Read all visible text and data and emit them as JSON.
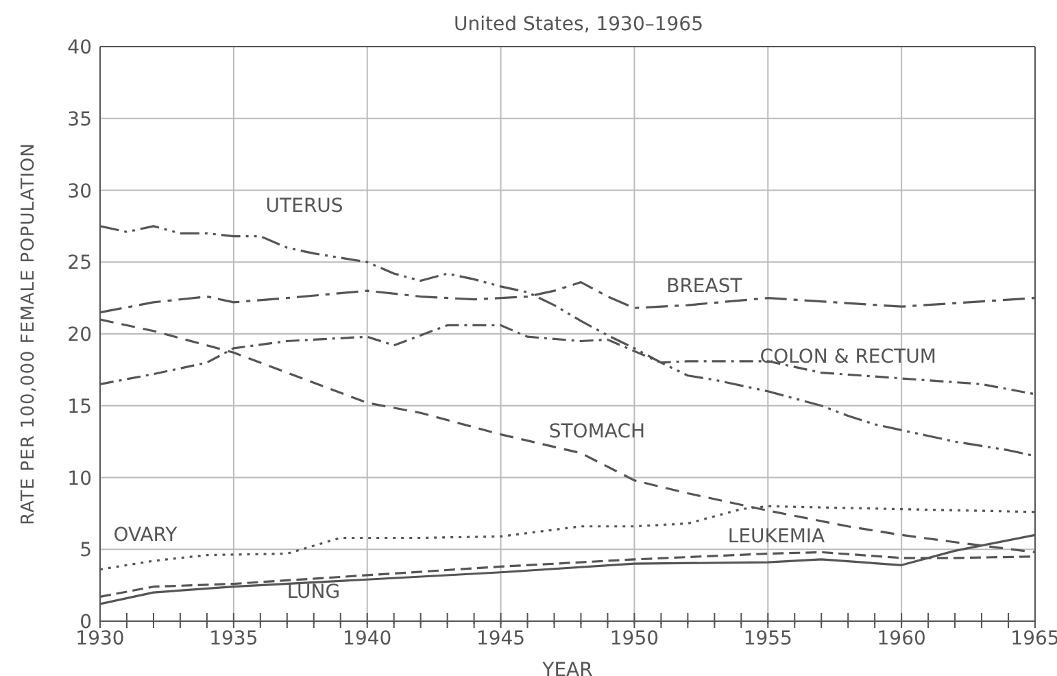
{
  "chart_data": {
    "type": "line",
    "title": "United States, 1930–1965",
    "xlabel": "YEAR",
    "ylabel": "RATE PER 100,000 FEMALE POPULATION",
    "xlim": [
      1930,
      1965
    ],
    "xticks": [
      1930,
      {
        "value": 1931,
        "label": null
      },
      {
        "value": 1932,
        "label": null
      },
      {
        "value": 1933,
        "label": null
      },
      {
        "value": 1934,
        "label": null
      },
      1935,
      {
        "value": 1936,
        "label": null
      },
      {
        "value": 1937,
        "label": null
      },
      {
        "value": 1938,
        "label": null
      },
      {
        "value": 1939,
        "label": null
      },
      1940,
      {
        "value": 1941,
        "label": null
      },
      {
        "value": 1942,
        "label": null
      },
      {
        "value": 1943,
        "label": null
      },
      {
        "value": 1944,
        "label": null
      },
      1945,
      {
        "value": 1946,
        "label": null
      },
      {
        "value": 1947,
        "label": null
      },
      {
        "value": 1948,
        "label": null
      },
      {
        "value": 1949,
        "label": null
      },
      1950,
      {
        "value": 1951,
        "label": null
      },
      {
        "value": 1952,
        "label": null
      },
      {
        "value": 1953,
        "label": null
      },
      {
        "value": 1954,
        "label": null
      },
      1955,
      {
        "value": 1956,
        "label": null
      },
      {
        "value": 1957,
        "label": null
      },
      {
        "value": 1958,
        "label": null
      },
      {
        "value": 1959,
        "label": null
      },
      1960,
      {
        "value": 1961,
        "label": null
      },
      {
        "value": 1962,
        "label": null
      },
      {
        "value": 1963,
        "label": null
      },
      {
        "value": 1964,
        "label": null
      },
      1965
    ],
    "ylim": [
      0,
      40
    ],
    "yticks": [
      0,
      5,
      10,
      15,
      20,
      25,
      30,
      35,
      40
    ],
    "grid": true,
    "legend": false,
    "marker": "none",
    "series": [
      {
        "name": "UTERUS",
        "color": "#555555",
        "line_style": "dashed",
        "x": [
          1930,
          1931,
          1932,
          1933,
          1934,
          1935,
          1936,
          1937,
          1938,
          1939,
          1940,
          1941,
          1942,
          1943,
          1944,
          1945,
          1946,
          1947,
          1948,
          1949,
          1950,
          1951,
          1952,
          1953,
          1954,
          1955,
          1956,
          1957,
          1958,
          1959,
          1960,
          1961,
          1962,
          1963,
          1964,
          1965
        ],
        "values": [
          27.5,
          27.1,
          27.5,
          27.0,
          27.0,
          26.8,
          26.8,
          26.0,
          25.6,
          25.3,
          25.0,
          24.2,
          23.7,
          24.2,
          23.8,
          23.3,
          22.9,
          22.0,
          20.9,
          19.9,
          19.0,
          18.0,
          17.1,
          16.8,
          16.4,
          16.0,
          15.5,
          15.0,
          14.3,
          13.7,
          13.3,
          12.9,
          12.5,
          12.2,
          11.9,
          11.5
        ]
      },
      {
        "name": "BREAST",
        "color": "#555555",
        "line_style": "dashed",
        "x": [
          1930,
          1932,
          1934,
          1935,
          1937,
          1940,
          1942,
          1944,
          1946,
          1947,
          1948,
          1949,
          1950,
          1952,
          1955,
          1960,
          1965
        ],
        "values": [
          21.5,
          22.2,
          22.6,
          22.2,
          22.5,
          23.0,
          22.6,
          22.4,
          22.6,
          23.0,
          23.6,
          22.6,
          21.8,
          22.0,
          22.5,
          21.9,
          22.5
        ]
      },
      {
        "name": "COLON & RECTUM",
        "color": "#555555",
        "line_style": "dashed",
        "x": [
          1930,
          1932,
          1934,
          1935,
          1937,
          1940,
          1941,
          1943,
          1945,
          1946,
          1948,
          1949,
          1951,
          1952,
          1955,
          1957,
          1960,
          1963,
          1965
        ],
        "values": [
          16.5,
          17.2,
          18.0,
          19.0,
          19.5,
          19.8,
          19.2,
          20.6,
          20.6,
          19.8,
          19.5,
          19.6,
          18.0,
          18.1,
          18.1,
          17.3,
          16.9,
          16.5,
          15.8
        ]
      },
      {
        "name": "STOMACH",
        "color": "#555555",
        "line_style": "dashed",
        "x": [
          1930,
          1932,
          1934,
          1935,
          1937,
          1940,
          1942,
          1945,
          1948,
          1950,
          1952,
          1955,
          1958,
          1960,
          1962,
          1965
        ],
        "values": [
          21.0,
          20.2,
          19.2,
          18.7,
          17.3,
          15.2,
          14.5,
          13.0,
          11.7,
          9.8,
          8.9,
          7.7,
          6.6,
          6.0,
          5.5,
          4.8
        ]
      },
      {
        "name": "OVARY",
        "color": "#555555",
        "line_style": "dotted",
        "x": [
          1930,
          1932,
          1934,
          1937,
          1939,
          1942,
          1945,
          1948,
          1950,
          1952,
          1954,
          1955,
          1960,
          1965
        ],
        "values": [
          3.6,
          4.2,
          4.6,
          4.7,
          5.8,
          5.8,
          5.9,
          6.6,
          6.6,
          6.8,
          7.8,
          8.0,
          7.8,
          7.6
        ]
      },
      {
        "name": "LEUKEMIA",
        "color": "#555555",
        "line_style": "dashed",
        "x": [
          1930,
          1932,
          1935,
          1940,
          1945,
          1950,
          1955,
          1957,
          1960,
          1962,
          1965
        ],
        "values": [
          1.7,
          2.4,
          2.6,
          3.2,
          3.8,
          4.3,
          4.7,
          4.8,
          4.4,
          4.4,
          4.5
        ]
      },
      {
        "name": "LUNG",
        "color": "#555555",
        "line_style": "solid",
        "x": [
          1930,
          1932,
          1935,
          1940,
          1945,
          1950,
          1955,
          1957,
          1960,
          1962,
          1965
        ],
        "values": [
          1.2,
          2.0,
          2.4,
          2.9,
          3.4,
          4.0,
          4.1,
          4.3,
          3.9,
          4.9,
          6.0
        ]
      }
    ]
  }
}
